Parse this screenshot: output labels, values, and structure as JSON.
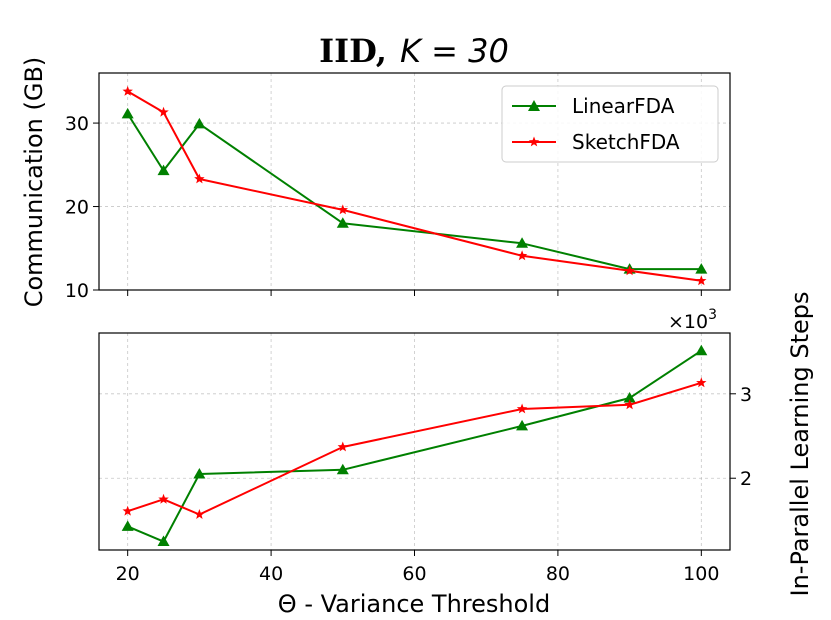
{
  "chart_data": {
    "type": "line",
    "title_bold": "IID,",
    "title_math": "K = 30",
    "xlabel": "Θ - Variance Threshold",
    "x_ticks": [
      "20",
      "40",
      "60",
      "80",
      "100"
    ],
    "x_tick_values": [
      20,
      40,
      60,
      80,
      100
    ],
    "xlim": [
      16,
      104
    ],
    "grid": true,
    "legend_placement": "top-right",
    "subplots": [
      {
        "name": "top",
        "ylabel": "Communication (GB)",
        "ylabel_side": "left",
        "y_ticks": [
          "10",
          "20",
          "30"
        ],
        "y_tick_values": [
          10,
          20,
          30
        ],
        "ylim": [
          10,
          36
        ],
        "series": [
          {
            "name": "LinearFDA",
            "color": "#008000",
            "marker": "triangle",
            "x": [
              20,
              25,
              30,
              50,
              75,
              90,
              100
            ],
            "y": [
              31.1,
              24.3,
              29.9,
              18.0,
              15.6,
              12.5,
              12.5
            ]
          },
          {
            "name": "SketchFDA",
            "color": "#ff0000",
            "marker": "star",
            "x": [
              20,
              25,
              30,
              50,
              75,
              90,
              100
            ],
            "y": [
              33.8,
              31.3,
              23.3,
              19.6,
              14.1,
              12.3,
              11.1
            ]
          }
        ]
      },
      {
        "name": "bottom",
        "ylabel": "In-Parallel Learning Steps",
        "ylabel_side": "right",
        "y_ticks": [
          "2",
          "3"
        ],
        "y_tick_values": [
          2000,
          3000
        ],
        "y_multiplier": "×10",
        "y_multiplier_exp": "3",
        "ylim": [
          1150,
          3720
        ],
        "series": [
          {
            "name": "LinearFDA",
            "color": "#008000",
            "marker": "triangle",
            "x": [
              20,
              25,
              30,
              50,
              75,
              90,
              100
            ],
            "y": [
              1430,
              1250,
              2050,
              2100,
              2620,
              2950,
              3510
            ]
          },
          {
            "name": "SketchFDA",
            "color": "#ff0000",
            "marker": "star",
            "x": [
              20,
              25,
              30,
              50,
              75,
              90,
              100
            ],
            "y": [
              1610,
              1750,
              1570,
              2370,
              2820,
              2870,
              3130
            ]
          }
        ]
      }
    ]
  }
}
